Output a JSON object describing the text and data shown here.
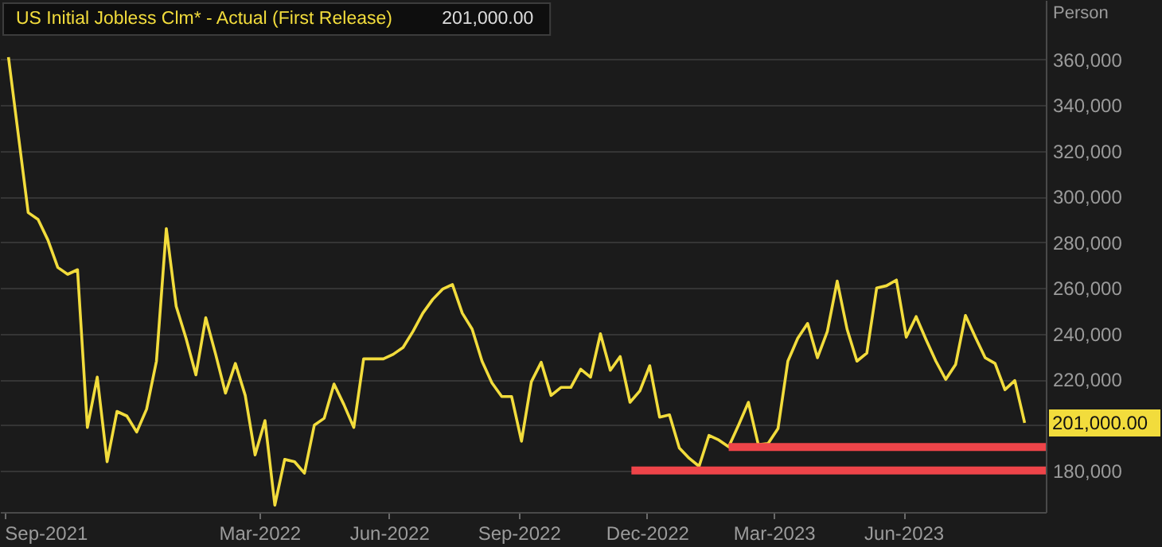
{
  "chart_data": {
    "type": "line",
    "x": [
      "2021-09-04",
      "2021-09-11",
      "2021-09-18",
      "2021-09-25",
      "2021-10-02",
      "2021-10-09",
      "2021-10-16",
      "2021-10-23",
      "2021-10-30",
      "2021-11-06",
      "2021-11-13",
      "2021-11-20",
      "2021-11-27",
      "2021-12-04",
      "2021-12-11",
      "2021-12-18",
      "2021-12-25",
      "2022-01-01",
      "2022-01-08",
      "2022-01-15",
      "2022-01-22",
      "2022-01-29",
      "2022-02-05",
      "2022-02-12",
      "2022-02-19",
      "2022-02-26",
      "2022-03-05",
      "2022-03-12",
      "2022-03-19",
      "2022-03-26",
      "2022-04-02",
      "2022-04-09",
      "2022-04-16",
      "2022-04-23",
      "2022-04-30",
      "2022-05-07",
      "2022-05-14",
      "2022-05-21",
      "2022-05-28",
      "2022-06-04",
      "2022-06-11",
      "2022-06-18",
      "2022-06-25",
      "2022-07-02",
      "2022-07-09",
      "2022-07-16",
      "2022-07-23",
      "2022-07-30",
      "2022-08-06",
      "2022-08-13",
      "2022-08-20",
      "2022-08-27",
      "2022-09-03",
      "2022-09-10",
      "2022-09-17",
      "2022-09-24",
      "2022-10-01",
      "2022-10-08",
      "2022-10-15",
      "2022-10-22",
      "2022-10-29",
      "2022-11-05",
      "2022-11-12",
      "2022-11-19",
      "2022-11-26",
      "2022-12-03",
      "2022-12-10",
      "2022-12-17",
      "2022-12-24",
      "2022-12-31",
      "2023-01-07",
      "2023-01-14",
      "2023-01-21",
      "2023-01-28",
      "2023-02-04",
      "2023-02-11",
      "2023-02-18",
      "2023-02-25",
      "2023-03-04",
      "2023-03-11",
      "2023-03-18",
      "2023-03-25",
      "2023-04-01",
      "2023-04-08",
      "2023-04-15",
      "2023-04-22",
      "2023-04-29",
      "2023-05-06",
      "2023-05-13",
      "2023-05-20",
      "2023-05-27",
      "2023-06-03",
      "2023-06-10",
      "2023-06-17",
      "2023-06-24",
      "2023-07-01",
      "2023-07-08",
      "2023-07-15",
      "2023-07-22",
      "2023-07-29",
      "2023-08-05",
      "2023-08-12",
      "2023-08-19",
      "2023-08-26"
    ],
    "series": [
      {
        "name": "US Initial Jobless Clm* - Actual (First Release)",
        "color": "#f2dc3c",
        "values": [
          361000,
          327000,
          293000,
          290000,
          281000,
          269000,
          266000,
          268000,
          199000,
          221000,
          184000,
          206000,
          204000,
          197000,
          207000,
          228000,
          286000,
          252000,
          238000,
          222000,
          247000,
          231000,
          214000,
          227000,
          213000,
          187000,
          202000,
          165000,
          185000,
          184000,
          179000,
          200000,
          203000,
          218000,
          209000,
          199000,
          229000,
          229000,
          229000,
          231000,
          234000,
          241000,
          249000,
          255000,
          259500,
          261500,
          249000,
          242000,
          228000,
          218500,
          212500,
          212500,
          193000,
          219000,
          227500,
          213000,
          216500,
          216500,
          224500,
          221000,
          240000,
          224000,
          230000,
          210000,
          215000,
          226000,
          203500,
          204500,
          190000,
          185500,
          182000,
          195500,
          193500,
          190500,
          200000,
          210000,
          191500,
          192000,
          198500,
          228000,
          238000,
          244500,
          229500,
          241000,
          263000,
          242000,
          228000,
          231500,
          260000,
          261000,
          263500,
          238500,
          247500,
          237500,
          228000,
          220000,
          226500,
          248000,
          238500,
          229500,
          227000,
          215500,
          219500,
          201000
        ]
      },
      {
        "type": "line",
        "color": "#ee4449",
        "x": [
          "2023-01-28",
          "2023-09-10"
        ],
        "values": [
          190400,
          190400
        ]
      },
      {
        "type": "line",
        "color": "#ee4449",
        "x": [
          "2022-11-20",
          "2023-09-10"
        ],
        "values": [
          180200,
          180200
        ]
      }
    ],
    "ylabel": "Person",
    "xlim": [
      "2021-08-29",
      "2023-09-10"
    ],
    "xticks": [
      {
        "value": "2021-09-01",
        "label": "Sep-2021"
      },
      {
        "value": "2022-03-01",
        "label": "Mar-2022"
      },
      {
        "value": "2022-06-01",
        "label": "Jun-2022"
      },
      {
        "value": "2022-09-01",
        "label": "Sep-2022"
      },
      {
        "value": "2022-12-01",
        "label": "Dec-2022"
      },
      {
        "value": "2023-03-01",
        "label": "Mar-2023"
      },
      {
        "value": "2023-06-01",
        "label": "Jun-2023"
      }
    ],
    "ylim": [
      162000,
      386000
    ],
    "yticks": [
      {
        "value": 180000,
        "label": "180,000"
      },
      {
        "value": 200000,
        "label": null
      },
      {
        "value": 220000,
        "label": "220,000"
      },
      {
        "value": 240000,
        "label": "240,000"
      },
      {
        "value": 260000,
        "label": "260,000"
      },
      {
        "value": 280000,
        "label": "280,000"
      },
      {
        "value": 300000,
        "label": "300,000"
      },
      {
        "value": 320000,
        "label": "320,000"
      },
      {
        "value": 340000,
        "label": "340,000"
      },
      {
        "value": 360000,
        "label": "360,000"
      }
    ],
    "grid": "y",
    "legend": "top left",
    "annotations": [
      "201,000.00",
      "201,000.00"
    ]
  }
}
